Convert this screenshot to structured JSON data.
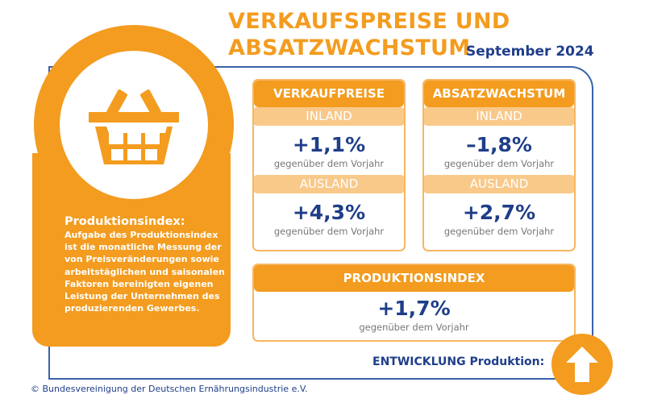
{
  "title": {
    "line1": "VERKAUFSPREISE UND",
    "line2": "ABSATZWACHSTUM",
    "date": "September 2024"
  },
  "info": {
    "heading": "Produktionsindex:",
    "text": "Aufgabe des Produktionsindex ist die monatliche Messung der von Preisveränderungen sowie arbeitstäglichen und saisonalen Faktoren bereinigten eigenen Leistung der Unternehmen des produzierenden Gewerbes.",
    "icon": "shopping-basket-icon"
  },
  "verkaufspreise": {
    "header": "VERKAUFPREISE",
    "inland_label": "INLAND",
    "inland_value": "+1,1%",
    "inland_sub": "gegenüber dem Vorjahr",
    "ausland_label": "AUSLAND",
    "ausland_value": "+4,3%",
    "ausland_sub": "gegenüber dem Vorjahr"
  },
  "absatz": {
    "header": "ABSATZWACHSTUM",
    "inland_label": "INLAND",
    "inland_value": "–1,8%",
    "inland_sub": "gegenüber dem Vorjahr",
    "ausland_label": "AUSLAND",
    "ausland_value": "+2,7%",
    "ausland_sub": "gegenüber dem Vorjahr"
  },
  "produktion": {
    "header": "PRODUKTIONSINDEX",
    "value": "+1,7%",
    "sub": "gegenüber dem Vorjahr"
  },
  "entwicklung": {
    "label": "ENTWICKLUNG Produktion:",
    "icon": "arrow-up-icon"
  },
  "copyright": "© Bundesvereinigung der Deutschen Ernährungsindustrie e.V.",
  "colors": {
    "orange": "#f39c1f",
    "light_orange": "#f9c98a",
    "blue": "#1f3e8a",
    "frame": "#3a63a8"
  }
}
